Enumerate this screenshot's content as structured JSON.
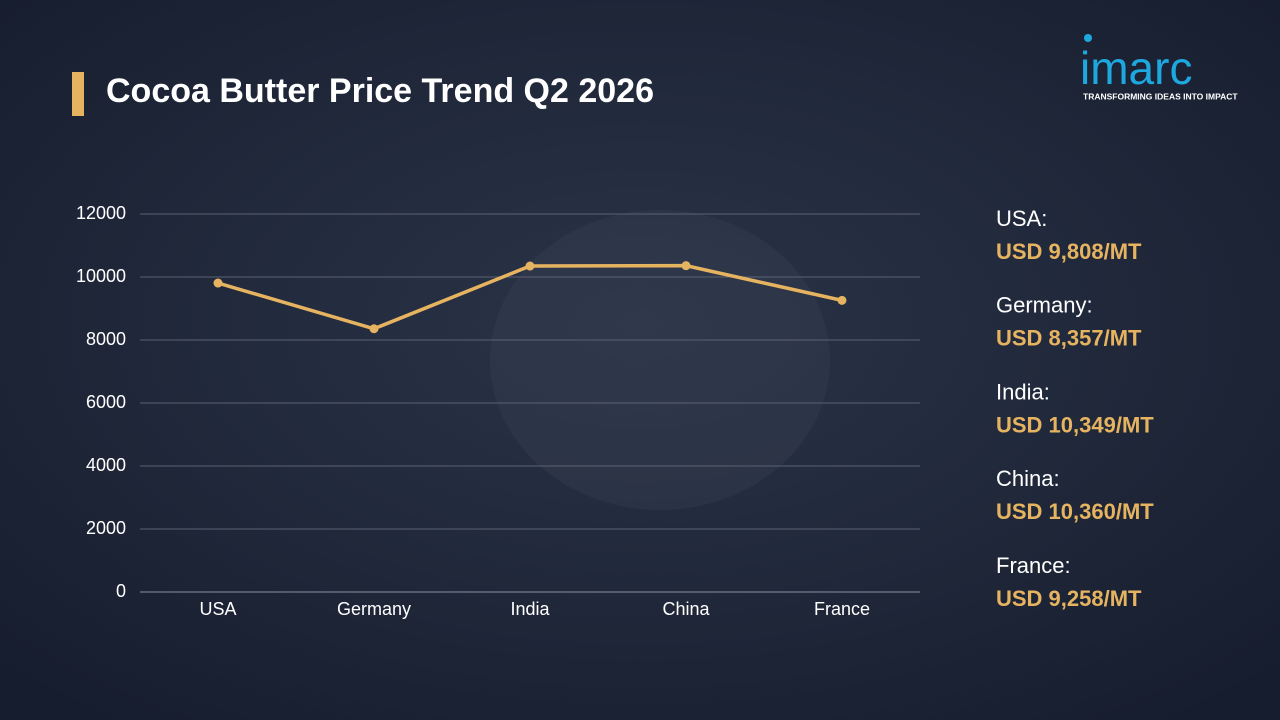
{
  "chart_data": {
    "type": "line",
    "title": "Cocoa Butter Price Trend Q2 2026",
    "categories": [
      "USA",
      "Germany",
      "India",
      "China",
      "France"
    ],
    "values": [
      9808,
      8357,
      10349,
      10360,
      9258
    ],
    "value_labels": [
      "USD 9,808/MT",
      "USD 8,357/MT",
      "USD 10,349/MT",
      "USD 10,360/MT",
      "USD 9,258/MT"
    ],
    "side_labels": [
      "USA:",
      "Germany:",
      "India:",
      "China:",
      "France:"
    ],
    "color": "#e6b460",
    "ylim": [
      0,
      12000
    ],
    "yticks": [
      0,
      2000,
      4000,
      6000,
      8000,
      10000,
      12000
    ],
    "grid": true
  },
  "logo": {
    "name": "imarc",
    "tagline": "TRANSFORMING IDEAS INTO IMPACT"
  }
}
